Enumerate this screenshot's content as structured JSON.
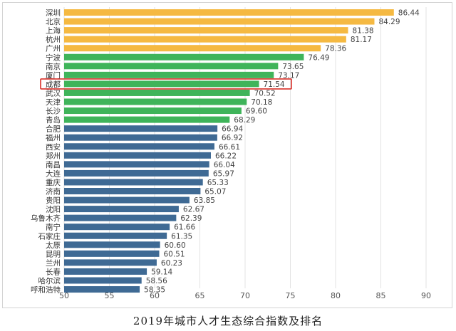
{
  "chart_data": {
    "type": "bar",
    "orientation": "horizontal",
    "title": "2019年城市人才生态综合指数及排名",
    "categories": [
      "深圳",
      "北京",
      "上海",
      "杭州",
      "广州",
      "宁波",
      "南京",
      "厦门",
      "成都",
      "武汉",
      "天津",
      "长沙",
      "青岛",
      "合肥",
      "福州",
      "西安",
      "郑州",
      "南昌",
      "大连",
      "重庆",
      "济南",
      "贵阳",
      "沈阳",
      "乌鲁木齐",
      "南宁",
      "石家庄",
      "太原",
      "昆明",
      "兰州",
      "长春",
      "哈尔滨",
      "呼和浩特"
    ],
    "values": [
      86.44,
      84.29,
      81.38,
      81.17,
      78.36,
      76.49,
      73.65,
      73.17,
      71.54,
      70.52,
      70.18,
      69.6,
      68.29,
      66.94,
      66.92,
      66.61,
      66.22,
      66.04,
      65.97,
      65.33,
      65.07,
      63.85,
      62.67,
      62.39,
      61.66,
      61.35,
      60.6,
      60.51,
      60.23,
      59.14,
      58.56,
      58.35
    ],
    "value_labels": [
      "86.44",
      "84.29",
      "81.38",
      "81.17",
      "78.36",
      "76.49",
      "73.65",
      "73.17",
      "71.54",
      "70.52",
      "70.18",
      "69.60",
      "68.29",
      "66.94",
      "66.92",
      "66.61",
      "66.22",
      "66.04",
      "65.97",
      "65.33",
      "65.07",
      "63.85",
      "62.67",
      "62.39",
      "61.66",
      "61.35",
      "60.60",
      "60.51",
      "60.23",
      "59.14",
      "58.56",
      "58.35"
    ],
    "bar_colors": [
      "#f5b942",
      "#f5b942",
      "#f5b942",
      "#f5b942",
      "#f5b942",
      "#3fb45a",
      "#3fb45a",
      "#3fb45a",
      "#3fb45a",
      "#3fb45a",
      "#3fb45a",
      "#3fb45a",
      "#3fb45a",
      "#3f6a94",
      "#3f6a94",
      "#3f6a94",
      "#3f6a94",
      "#3f6a94",
      "#3f6a94",
      "#3f6a94",
      "#3f6a94",
      "#3f6a94",
      "#3f6a94",
      "#3f6a94",
      "#3f6a94",
      "#3f6a94",
      "#3f6a94",
      "#3f6a94",
      "#3f6a94",
      "#3f6a94",
      "#3f6a94",
      "#3f6a94"
    ],
    "highlighted_category": "成都",
    "highlight_color": "#d9302a",
    "xlim": [
      50,
      90
    ],
    "xticks": [
      "50",
      "55",
      "60",
      "65",
      "70",
      "75",
      "80",
      "85",
      "90"
    ],
    "grid": true,
    "grid_color": "#e3e3e3",
    "xlabel": "",
    "ylabel": ""
  }
}
